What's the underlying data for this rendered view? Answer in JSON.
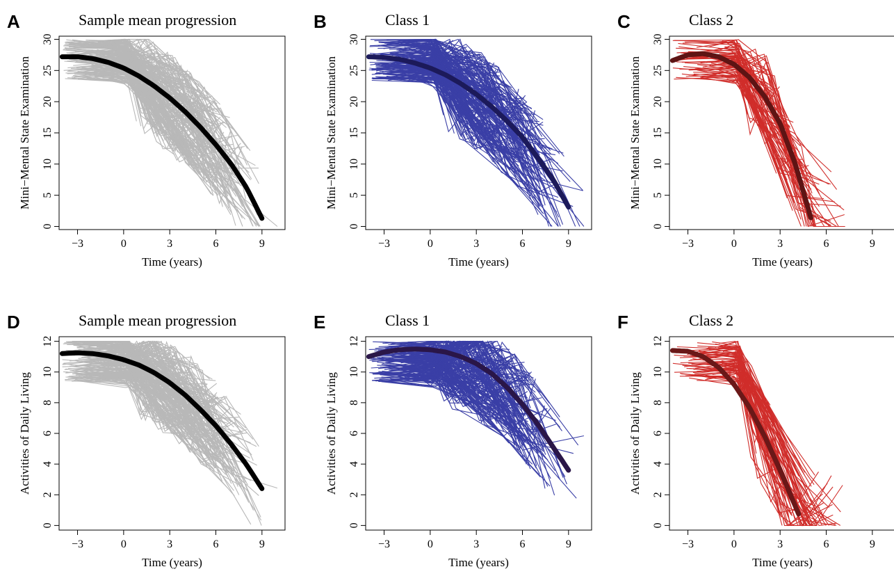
{
  "chart_data": [
    {
      "panel": "A",
      "type": "line",
      "title": "Sample mean progression",
      "xlabel": "Time (years)",
      "ylabel": "Mini−Mental State Examination",
      "xlim": [
        -4.2,
        10.5
      ],
      "ylim": [
        -0.5,
        30.5
      ],
      "xticks": [
        -3,
        0,
        3,
        6,
        9
      ],
      "yticks": [
        0,
        5,
        10,
        15,
        20,
        25,
        30
      ],
      "series": [
        {
          "role": "mean",
          "color": "#000000",
          "x": [
            -4,
            -3,
            -2,
            -1,
            0,
            1,
            2,
            3,
            4,
            5,
            6,
            7,
            8,
            9
          ],
          "y": [
            27.2,
            27.2,
            26.9,
            26.3,
            25.4,
            24.1,
            22.5,
            20.6,
            18.4,
            15.9,
            13.1,
            10.0,
            6.2,
            1.3
          ]
        },
        {
          "role": "individual",
          "color": "#b8b8b8",
          "count": 240,
          "x_range": [
            -4,
            10
          ],
          "y_range": [
            0,
            30
          ]
        }
      ]
    },
    {
      "panel": "B",
      "type": "line",
      "title": "Class 1",
      "xlabel": "Time (years)",
      "ylabel": "Mini−Mental State Examination",
      "xlim": [
        -4.2,
        10.5
      ],
      "ylim": [
        -0.5,
        30.5
      ],
      "xticks": [
        -3,
        0,
        3,
        6,
        9
      ],
      "yticks": [
        0,
        5,
        10,
        15,
        20,
        25,
        30
      ],
      "series": [
        {
          "role": "mean",
          "color": "#1c1a5a",
          "x": [
            -4,
            -3,
            -2,
            -1,
            0,
            1,
            2,
            3,
            4,
            5,
            6,
            7,
            8,
            9
          ],
          "y": [
            27.2,
            27.1,
            26.8,
            26.2,
            25.4,
            24.3,
            22.9,
            21.2,
            19.2,
            16.9,
            14.3,
            11.0,
            7.5,
            3.1
          ]
        },
        {
          "role": "individual",
          "color": "#3a3fa6",
          "count": 220,
          "x_range": [
            -4,
            10
          ],
          "y_range": [
            0,
            30
          ]
        }
      ]
    },
    {
      "panel": "C",
      "type": "line",
      "title": "Class 2",
      "xlabel": "Time (years)",
      "ylabel": "Mini−Mental State Examination",
      "xlim": [
        -4.2,
        10.5
      ],
      "ylim": [
        -0.5,
        30.5
      ],
      "xticks": [
        -3,
        0,
        3,
        6,
        9
      ],
      "yticks": [
        0,
        5,
        10,
        15,
        20,
        25,
        30
      ],
      "series": [
        {
          "role": "mean",
          "color": "#5e1414",
          "x": [
            -4,
            -3,
            -2,
            -1,
            0,
            1,
            2,
            3,
            4,
            5
          ],
          "y": [
            26.6,
            27.5,
            27.7,
            27.2,
            26.0,
            23.9,
            20.8,
            16.5,
            9.9,
            1.4
          ]
        },
        {
          "role": "individual",
          "color": "#d02d2a",
          "count": 80,
          "x_range": [
            -4,
            7.5
          ],
          "y_range": [
            0,
            30
          ]
        }
      ]
    },
    {
      "panel": "D",
      "type": "line",
      "title": "Sample mean progression",
      "xlabel": "Time (years)",
      "ylabel": "Activities of Daily Living",
      "xlim": [
        -4.2,
        10.5
      ],
      "ylim": [
        -0.3,
        12.3
      ],
      "xticks": [
        -3,
        0,
        3,
        6,
        9
      ],
      "yticks": [
        0,
        2,
        4,
        6,
        8,
        10,
        12
      ],
      "series": [
        {
          "role": "mean",
          "color": "#000000",
          "x": [
            -4,
            -3,
            -2,
            -1,
            0,
            1,
            2,
            3,
            4,
            5,
            6,
            7,
            8,
            9
          ],
          "y": [
            11.2,
            11.25,
            11.2,
            11.05,
            10.8,
            10.45,
            9.95,
            9.3,
            8.5,
            7.55,
            6.5,
            5.3,
            3.95,
            2.4
          ]
        },
        {
          "role": "individual",
          "color": "#b8b8b8",
          "count": 240,
          "x_range": [
            -4,
            10
          ],
          "y_range": [
            0,
            12
          ]
        }
      ]
    },
    {
      "panel": "E",
      "type": "line",
      "title": "Class 1",
      "xlabel": "Time (years)",
      "ylabel": "Activities of Daily Living",
      "xlim": [
        -4.2,
        10.5
      ],
      "ylim": [
        -0.3,
        12.3
      ],
      "xticks": [
        -3,
        0,
        3,
        6,
        9
      ],
      "yticks": [
        0,
        2,
        4,
        6,
        8,
        10,
        12
      ],
      "series": [
        {
          "role": "mean",
          "color": "#2a1648",
          "x": [
            -4,
            -3,
            -2,
            -1,
            0,
            1,
            2,
            3,
            4,
            5,
            6,
            7,
            8,
            9
          ],
          "y": [
            11.0,
            11.3,
            11.45,
            11.5,
            11.45,
            11.3,
            11.0,
            10.55,
            9.9,
            9.0,
            7.9,
            6.6,
            5.1,
            3.6
          ]
        },
        {
          "role": "individual",
          "color": "#3a3fa6",
          "count": 220,
          "x_range": [
            -4,
            10
          ],
          "y_range": [
            0,
            12
          ]
        }
      ]
    },
    {
      "panel": "F",
      "type": "line",
      "title": "Class 2",
      "xlabel": "Time (years)",
      "ylabel": "Activities of Daily Living",
      "xlim": [
        -4.2,
        10.5
      ],
      "ylim": [
        -0.3,
        12.3
      ],
      "xticks": [
        -3,
        0,
        3,
        6,
        9
      ],
      "yticks": [
        0,
        2,
        4,
        6,
        8,
        10,
        12
      ],
      "series": [
        {
          "role": "mean",
          "color": "#6a1818",
          "x": [
            -4,
            -3,
            -2,
            -1,
            0,
            1,
            2,
            3,
            4.2
          ],
          "y": [
            11.4,
            11.35,
            11.0,
            10.3,
            9.2,
            7.7,
            5.8,
            3.6,
            0.75
          ]
        },
        {
          "role": "individual",
          "color": "#d02d2a",
          "count": 80,
          "x_range": [
            -4,
            7.5
          ],
          "y_range": [
            0,
            12
          ]
        }
      ]
    }
  ]
}
